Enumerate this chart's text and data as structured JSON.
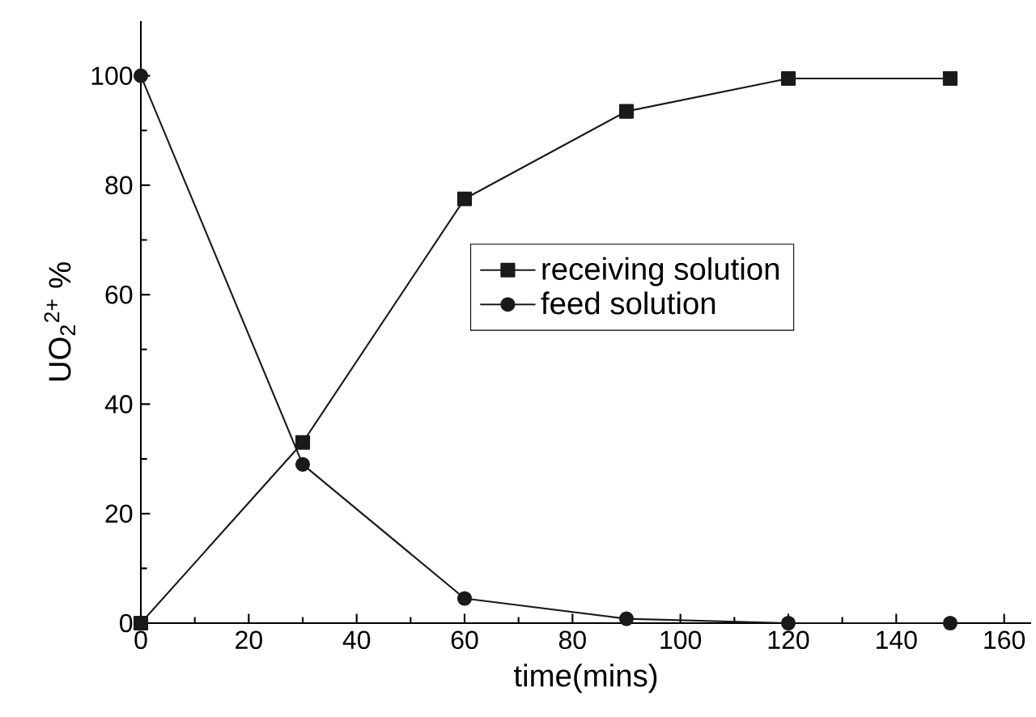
{
  "chart_data": {
    "type": "line",
    "xlabel": "time(mins)",
    "ylabel": "UO$_{2}$$^{2+}$ %",
    "x": [
      0,
      30,
      60,
      90,
      120,
      150
    ],
    "series": [
      {
        "name": "receiving solution",
        "color": "#1a1a1a",
        "marker": "square",
        "values": [
          0,
          33,
          77.5,
          93.5,
          99.5,
          99.5
        ]
      },
      {
        "name": "feed solution",
        "color": "#1a1a1a",
        "marker": "circle",
        "values": [
          100,
          29,
          4.5,
          0.8,
          0,
          0
        ]
      }
    ],
    "xlim": [
      0,
      165
    ],
    "ylim": [
      0,
      110
    ],
    "xticks": [
      0,
      20,
      40,
      60,
      80,
      100,
      120,
      140,
      160
    ],
    "yticks": [
      0,
      20,
      40,
      60,
      80,
      100
    ],
    "legend": "right",
    "grid": false,
    "line_style": "solid"
  }
}
